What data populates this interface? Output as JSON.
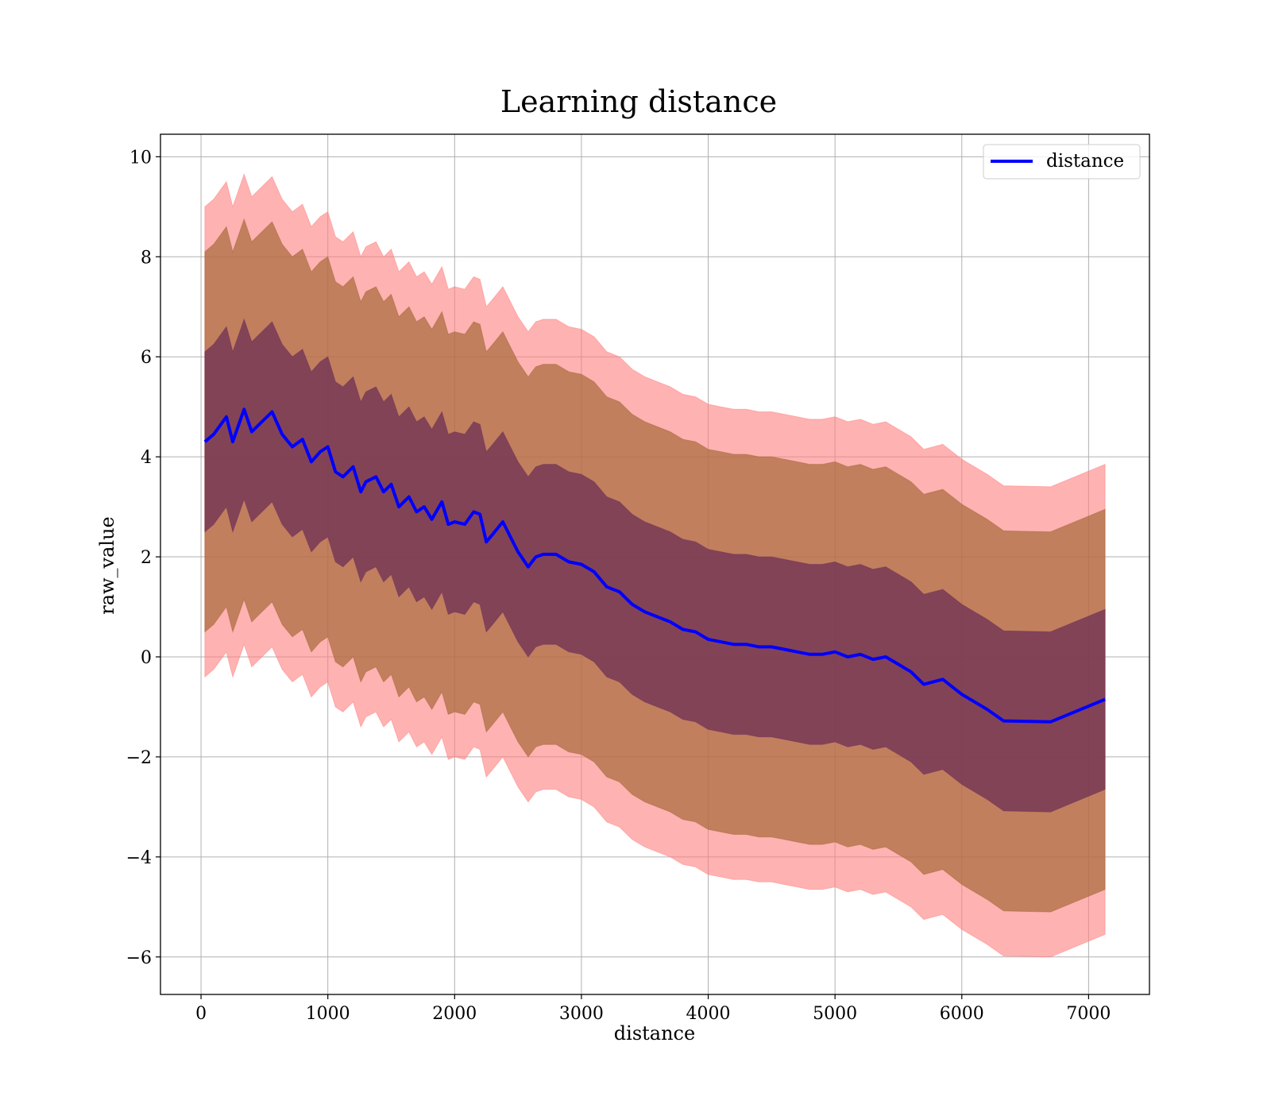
{
  "chart_data": {
    "type": "line",
    "title": "Learning distance",
    "xlabel": "distance",
    "ylabel": "raw_value",
    "xlim": [
      -320,
      7480
    ],
    "ylim": [
      -6.75,
      10.45
    ],
    "xticks": [
      0,
      1000,
      2000,
      3000,
      4000,
      5000,
      6000,
      7000
    ],
    "yticks": [
      -6,
      -4,
      -2,
      0,
      2,
      4,
      6,
      8,
      10
    ],
    "xtick_labels": [
      "0",
      "1000",
      "2000",
      "3000",
      "4000",
      "5000",
      "6000",
      "7000"
    ],
    "ytick_labels": [
      "−6",
      "−4",
      "−2",
      "0",
      "2",
      "4",
      "6",
      "8",
      "10"
    ],
    "grid": true,
    "legend_position": "top-right",
    "legend": [
      "distance"
    ],
    "colors": {
      "line": "#0000ff",
      "band_outer": "#ff7f7f",
      "band_middle": "#a66a3a",
      "band_inner": "#6e2f55",
      "grid": "#b0b0b0"
    },
    "x": [
      30,
      100,
      200,
      250,
      340,
      400,
      480,
      560,
      640,
      720,
      800,
      870,
      940,
      1000,
      1060,
      1120,
      1200,
      1260,
      1300,
      1380,
      1440,
      1500,
      1560,
      1640,
      1700,
      1760,
      1820,
      1900,
      1950,
      2000,
      2080,
      2150,
      2200,
      2250,
      2300,
      2380,
      2440,
      2500,
      2580,
      2640,
      2700,
      2800,
      2900,
      3000,
      3100,
      3200,
      3300,
      3400,
      3500,
      3600,
      3700,
      3800,
      3900,
      4000,
      4100,
      4200,
      4300,
      4400,
      4500,
      4600,
      4700,
      4800,
      4900,
      5000,
      5100,
      5200,
      5300,
      5400,
      5500,
      5600,
      5700,
      5850,
      6000,
      6200,
      6330,
      6700,
      7130
    ],
    "series": [
      {
        "name": "distance",
        "values": [
          4.3,
          4.45,
          4.8,
          4.3,
          4.95,
          4.5,
          4.7,
          4.9,
          4.45,
          4.2,
          4.35,
          3.9,
          4.1,
          4.2,
          3.7,
          3.6,
          3.8,
          3.3,
          3.5,
          3.6,
          3.3,
          3.45,
          3.0,
          3.2,
          2.9,
          3.0,
          2.75,
          3.1,
          2.65,
          2.7,
          2.65,
          2.9,
          2.85,
          2.3,
          2.45,
          2.7,
          2.4,
          2.1,
          1.8,
          2.0,
          2.05,
          2.05,
          1.9,
          1.85,
          1.7,
          1.4,
          1.3,
          1.05,
          0.9,
          0.8,
          0.7,
          0.55,
          0.5,
          0.35,
          0.3,
          0.25,
          0.25,
          0.2,
          0.2,
          0.15,
          0.1,
          0.05,
          0.05,
          0.1,
          0.0,
          0.05,
          -0.05,
          0.0,
          -0.15,
          -0.3,
          -0.55,
          -0.45,
          -0.75,
          -1.05,
          -1.28,
          -1.3,
          -0.85
        ]
      }
    ],
    "bands": [
      {
        "level": "outer",
        "half_width": 4.7
      },
      {
        "level": "middle",
        "half_width": 3.8
      },
      {
        "level": "inner",
        "half_width": 1.8
      }
    ]
  }
}
